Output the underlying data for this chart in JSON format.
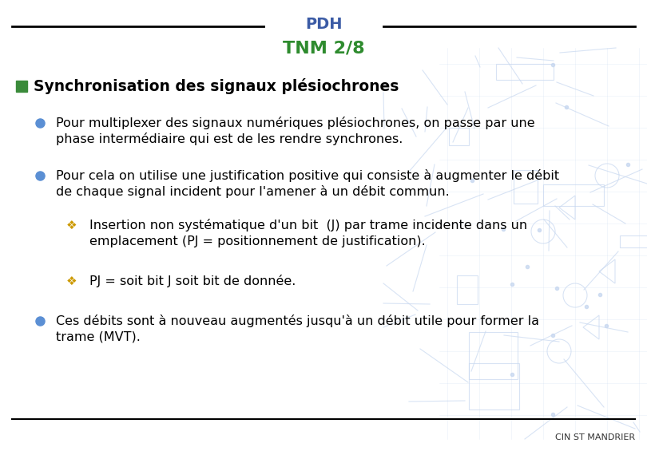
{
  "title_pdh": "PDH",
  "title_tnm": "TNM 2/8",
  "title_pdh_color": "#3B5BA5",
  "title_tnm_color": "#2E8B2E",
  "bg_color": "#FFFFFF",
  "footer_text": "CIN ST MANDRIER",
  "footer_color": "#333333",
  "header_line_color": "#000000",
  "footer_line_color": "#000000",
  "square_bullet_color": "#3B8B3B",
  "circle_bullet_color": "#5B8FD4",
  "diamond_bullet_color": "#CC9900",
  "section_title": "Synchronisation des signaux plésiochrones",
  "bullet1_line1": "Pour multiplexer des signaux numériques plésiochrones, on passe par une",
  "bullet1_line2": "phase intermédiaire qui est de les rendre synchrones.",
  "bullet2_line1": "Pour cela on utilise une justification positive qui consiste à augmenter le débit",
  "bullet2_line2": "de chaque signal incident pour l'amener à un débit commun.",
  "sub1_line1": "Insertion non systématique d'un bit  (J) par trame incidente dans un",
  "sub1_line2": "emplacement (PJ = positionnement de justification).",
  "sub2_line1": "PJ = soit bit J soit bit de donnée.",
  "bullet3_line1": "Ces débits sont à nouveau augmentés jusqu'à un débit utile pour former la",
  "bullet3_line2": "trame (MVT).",
  "text_color": "#000000",
  "section_fontsize": 13.5,
  "bullet_fontsize": 11.5,
  "sub_fontsize": 11.5,
  "title_pdh_fontsize": 14,
  "title_tnm_fontsize": 16
}
